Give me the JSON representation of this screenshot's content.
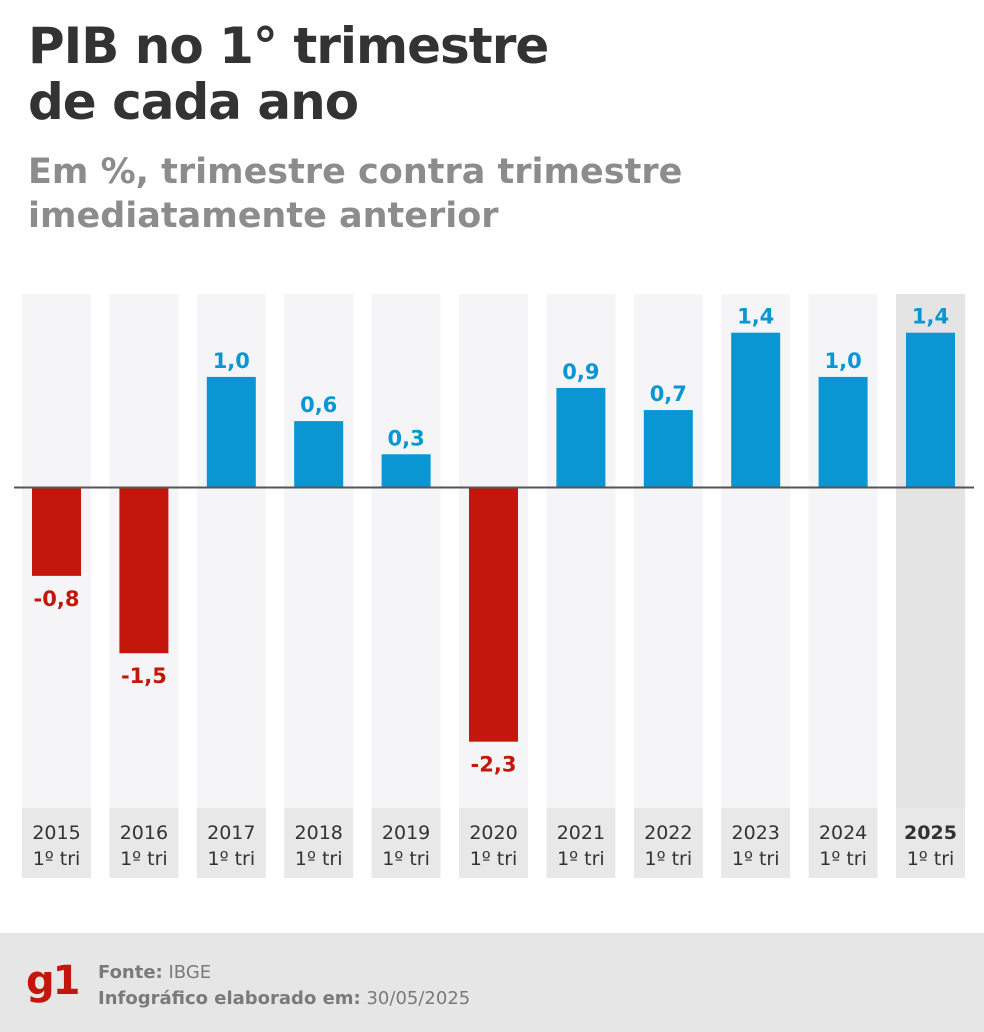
{
  "header": {
    "title_line1": "PIB no 1° trimestre",
    "title_line2": "de cada ano",
    "subtitle_line1": "Em %, trimestre contra trimestre",
    "subtitle_line2": "imediatamente anterior"
  },
  "chart_data": {
    "type": "bar",
    "title": "PIB no 1° trimestre de cada ano",
    "subtitle": "Em %, trimestre contra trimestre imediatamente anterior",
    "categories": [
      "2015",
      "2016",
      "2017",
      "2018",
      "2019",
      "2020",
      "2021",
      "2022",
      "2023",
      "2024",
      "2025"
    ],
    "period_label": "1º tri",
    "values": [
      -0.8,
      -1.5,
      1.0,
      0.6,
      0.3,
      -2.3,
      0.9,
      0.7,
      1.4,
      1.0,
      1.4
    ],
    "value_labels": [
      "-0,8",
      "-1,5",
      "1,0",
      "0,6",
      "0,3",
      "-2,3",
      "0,9",
      "0,7",
      "1,4",
      "1,0",
      "1,4"
    ],
    "highlighted_category": "2025",
    "ylim": [
      -2.9,
      1.75
    ],
    "xlabel": "",
    "ylabel": "",
    "colors": {
      "positive": "#0a96d2",
      "negative": "#c4170c",
      "column_bg": "#f5f5f7",
      "column_bg_highlight": "#e4e4e4",
      "label_bg": "#e8e8e8",
      "zero_line": "#555555"
    }
  },
  "footer": {
    "logo": "g1",
    "source_label": "Fonte:",
    "source_value": "IBGE",
    "made_label": "Infográfico elaborado em:",
    "made_value": "30/05/2025"
  }
}
